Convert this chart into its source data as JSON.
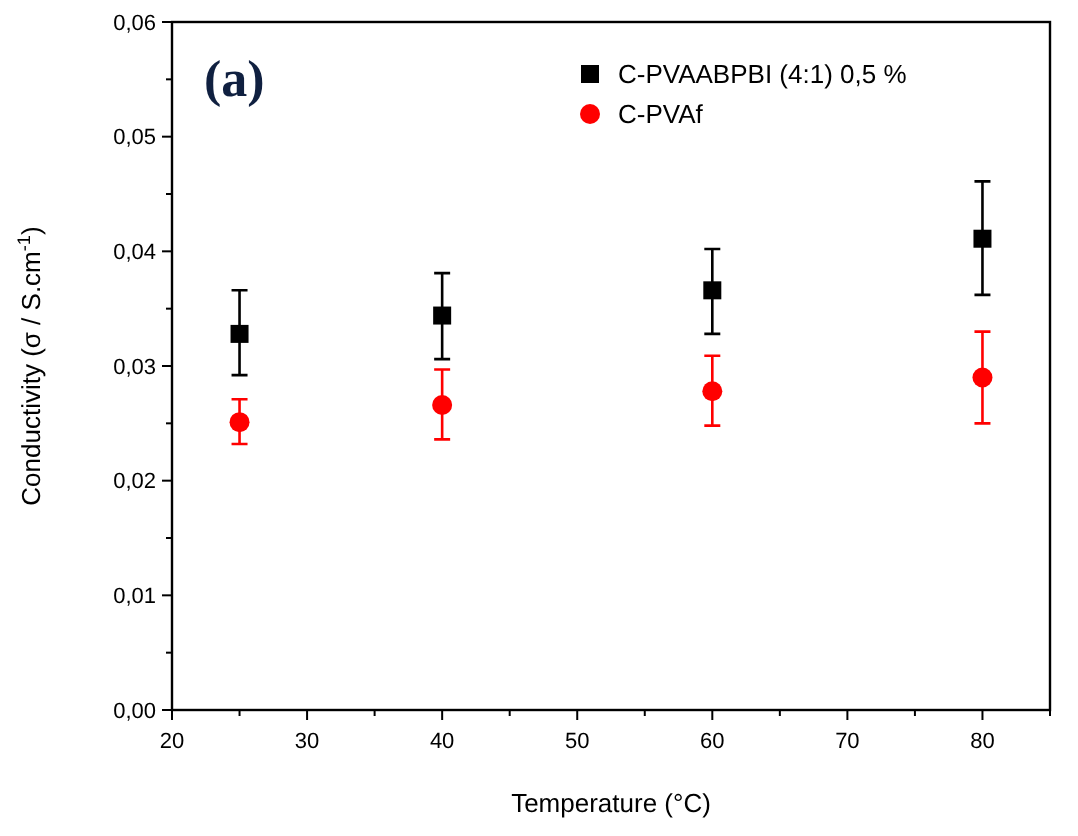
{
  "chart_data": {
    "type": "scatter",
    "xlabel": "Temperature (°C)",
    "ylabel": "Conductivity (σ / S.cm$^{-1}$)",
    "annotations": [
      "(a)"
    ],
    "xlim": [
      20,
      85
    ],
    "xticks": [
      20,
      {
        "value": 25,
        "label": null
      },
      30,
      {
        "value": 35,
        "label": null
      },
      40,
      {
        "value": 45,
        "label": null
      },
      50,
      {
        "value": 55,
        "label": null
      },
      60,
      {
        "value": 65,
        "label": null
      },
      70,
      {
        "value": 75,
        "label": null
      },
      80,
      {
        "value": 85,
        "label": null
      }
    ],
    "ylim": [
      0,
      0.06
    ],
    "yticks": [
      {
        "value": 0,
        "label": "0,00"
      },
      {
        "value": 0.005,
        "label": null
      },
      {
        "value": 0.01,
        "label": "0,01"
      },
      {
        "value": 0.015,
        "label": null
      },
      {
        "value": 0.02,
        "label": "0,02"
      },
      {
        "value": 0.025,
        "label": null
      },
      {
        "value": 0.03,
        "label": "0,03"
      },
      {
        "value": 0.035,
        "label": null
      },
      {
        "value": 0.04,
        "label": "0,04"
      },
      {
        "value": 0.045,
        "label": null
      },
      {
        "value": 0.05,
        "label": "0,05"
      },
      {
        "value": 0.055,
        "label": null
      },
      {
        "value": 0.06,
        "label": "0,06"
      }
    ],
    "x": [
      25,
      40,
      60,
      80
    ],
    "series": [
      {
        "name": "C-PVAABPBI (4:1) 0,5 %",
        "color": "#000000",
        "marker": "square",
        "values": [
          0.0328,
          0.0344,
          0.0366,
          0.0411
        ],
        "errors": [
          [
            0.0292,
            0.0366
          ],
          [
            0.0306,
            0.0381
          ],
          [
            0.0328,
            0.0402
          ],
          [
            0.0362,
            0.0461
          ]
        ]
      },
      {
        "name": "C-PVAf",
        "color": "#ff0000",
        "marker": "circle",
        "values": [
          0.0251,
          0.0266,
          0.0278,
          0.029
        ],
        "errors": [
          [
            0.0232,
            0.0271
          ],
          [
            0.0236,
            0.0297
          ],
          [
            0.0248,
            0.0309
          ],
          [
            0.025,
            0.033
          ]
        ]
      }
    ],
    "legend": "top right",
    "grid": false
  }
}
